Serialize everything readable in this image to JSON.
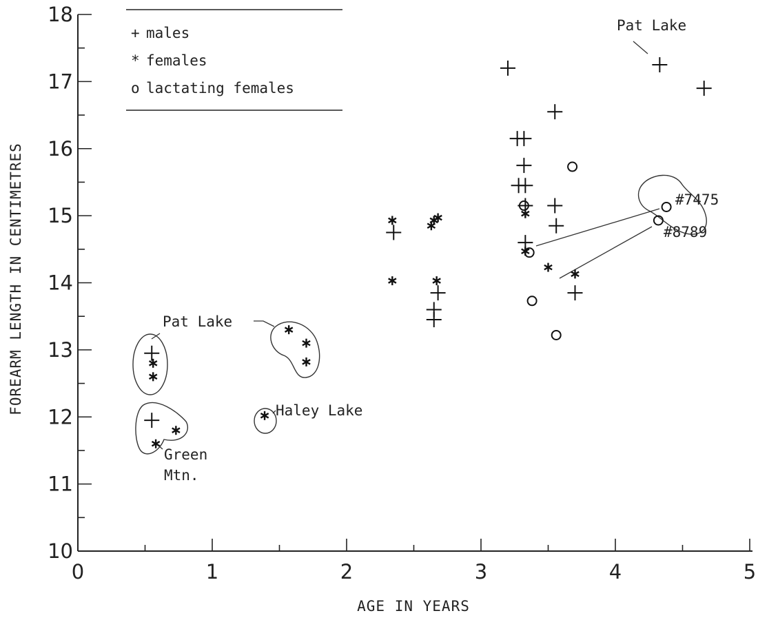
{
  "chart_data": {
    "type": "scatter",
    "xlabel": "AGE IN YEARS",
    "ylabel": "FOREARM LENGTH IN CENTIMETRES",
    "xlim": [
      0,
      5
    ],
    "ylim": [
      10,
      18
    ],
    "x_ticks": [
      "0",
      "1",
      "2",
      "3",
      "4",
      "5"
    ],
    "y_ticks": [
      "10",
      "11",
      "12",
      "13",
      "14",
      "15",
      "16",
      "17",
      "18"
    ],
    "grid": false,
    "legend_position": "top-left",
    "series": [
      {
        "name": "males",
        "marker": "+",
        "points": [
          [
            0.55,
            12.95
          ],
          [
            0.55,
            11.95
          ],
          [
            2.35,
            14.75
          ],
          [
            2.68,
            13.85
          ],
          [
            2.65,
            13.6
          ],
          [
            2.65,
            13.45
          ],
          [
            3.2,
            17.2
          ],
          [
            3.27,
            16.15
          ],
          [
            3.32,
            16.15
          ],
          [
            3.32,
            15.75
          ],
          [
            3.28,
            15.45
          ],
          [
            3.33,
            15.45
          ],
          [
            3.33,
            15.15
          ],
          [
            3.33,
            14.6
          ],
          [
            3.55,
            16.55
          ],
          [
            3.55,
            15.15
          ],
          [
            3.56,
            14.85
          ],
          [
            3.7,
            13.85
          ],
          [
            4.33,
            17.25
          ],
          [
            4.66,
            16.9
          ]
        ]
      },
      {
        "name": "females",
        "marker": "*",
        "points": [
          [
            0.56,
            12.8
          ],
          [
            0.56,
            12.6
          ],
          [
            0.58,
            11.6
          ],
          [
            0.73,
            11.8
          ],
          [
            1.39,
            12.02
          ],
          [
            1.57,
            13.3
          ],
          [
            1.7,
            13.1
          ],
          [
            1.7,
            12.82
          ],
          [
            2.34,
            14.93
          ],
          [
            2.34,
            14.03
          ],
          [
            2.63,
            14.85
          ],
          [
            2.65,
            14.93
          ],
          [
            2.68,
            14.97
          ],
          [
            2.67,
            14.03
          ],
          [
            3.33,
            15.03
          ],
          [
            3.33,
            14.47
          ],
          [
            3.5,
            14.23
          ],
          [
            3.7,
            14.13
          ]
        ]
      },
      {
        "name": "lactating females",
        "marker": "o",
        "points": [
          [
            3.32,
            15.15
          ],
          [
            3.36,
            14.45
          ],
          [
            3.68,
            15.73
          ],
          [
            3.38,
            13.73
          ],
          [
            3.56,
            13.22
          ],
          [
            4.38,
            15.13
          ],
          [
            4.32,
            14.93
          ]
        ]
      }
    ],
    "annotations": [
      {
        "id": "pat-lake-left",
        "text": "Pat Lake"
      },
      {
        "id": "haley-lake",
        "text": "Haley Lake"
      },
      {
        "id": "green-mtn-1",
        "text": "Green"
      },
      {
        "id": "green-mtn-2",
        "text": "Mtn."
      },
      {
        "id": "pat-lake-right",
        "text": "Pat Lake"
      },
      {
        "id": "id-7475",
        "text": "#7475"
      },
      {
        "id": "id-8789",
        "text": "#8789"
      }
    ]
  }
}
